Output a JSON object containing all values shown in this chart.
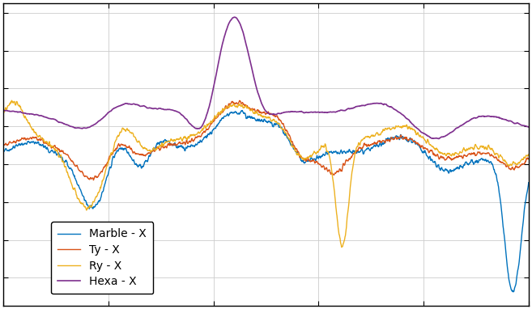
{
  "title": "",
  "xlabel": "",
  "ylabel": "",
  "background_color": "#ffffff",
  "plot_background": "#ffffff",
  "grid_color": "#cccccc",
  "line_series": [
    {
      "label": "Marble - X",
      "color": "#0072BD",
      "linewidth": 1.0
    },
    {
      "label": "Ty - X",
      "color": "#D95319",
      "linewidth": 1.0
    },
    {
      "label": "Ry - X",
      "color": "#EDB120",
      "linewidth": 1.0
    },
    {
      "label": "Hexa - X",
      "color": "#7E2F8E",
      "linewidth": 1.2
    }
  ],
  "legend_facecolor": "#ffffff",
  "legend_edgecolor": "#000000",
  "legend_textcolor": "#000000",
  "legend_fontsize": 10,
  "figsize": [
    6.57,
    3.82
  ],
  "dpi": 100,
  "spine_color": "#000000",
  "tick_color": "#000000"
}
